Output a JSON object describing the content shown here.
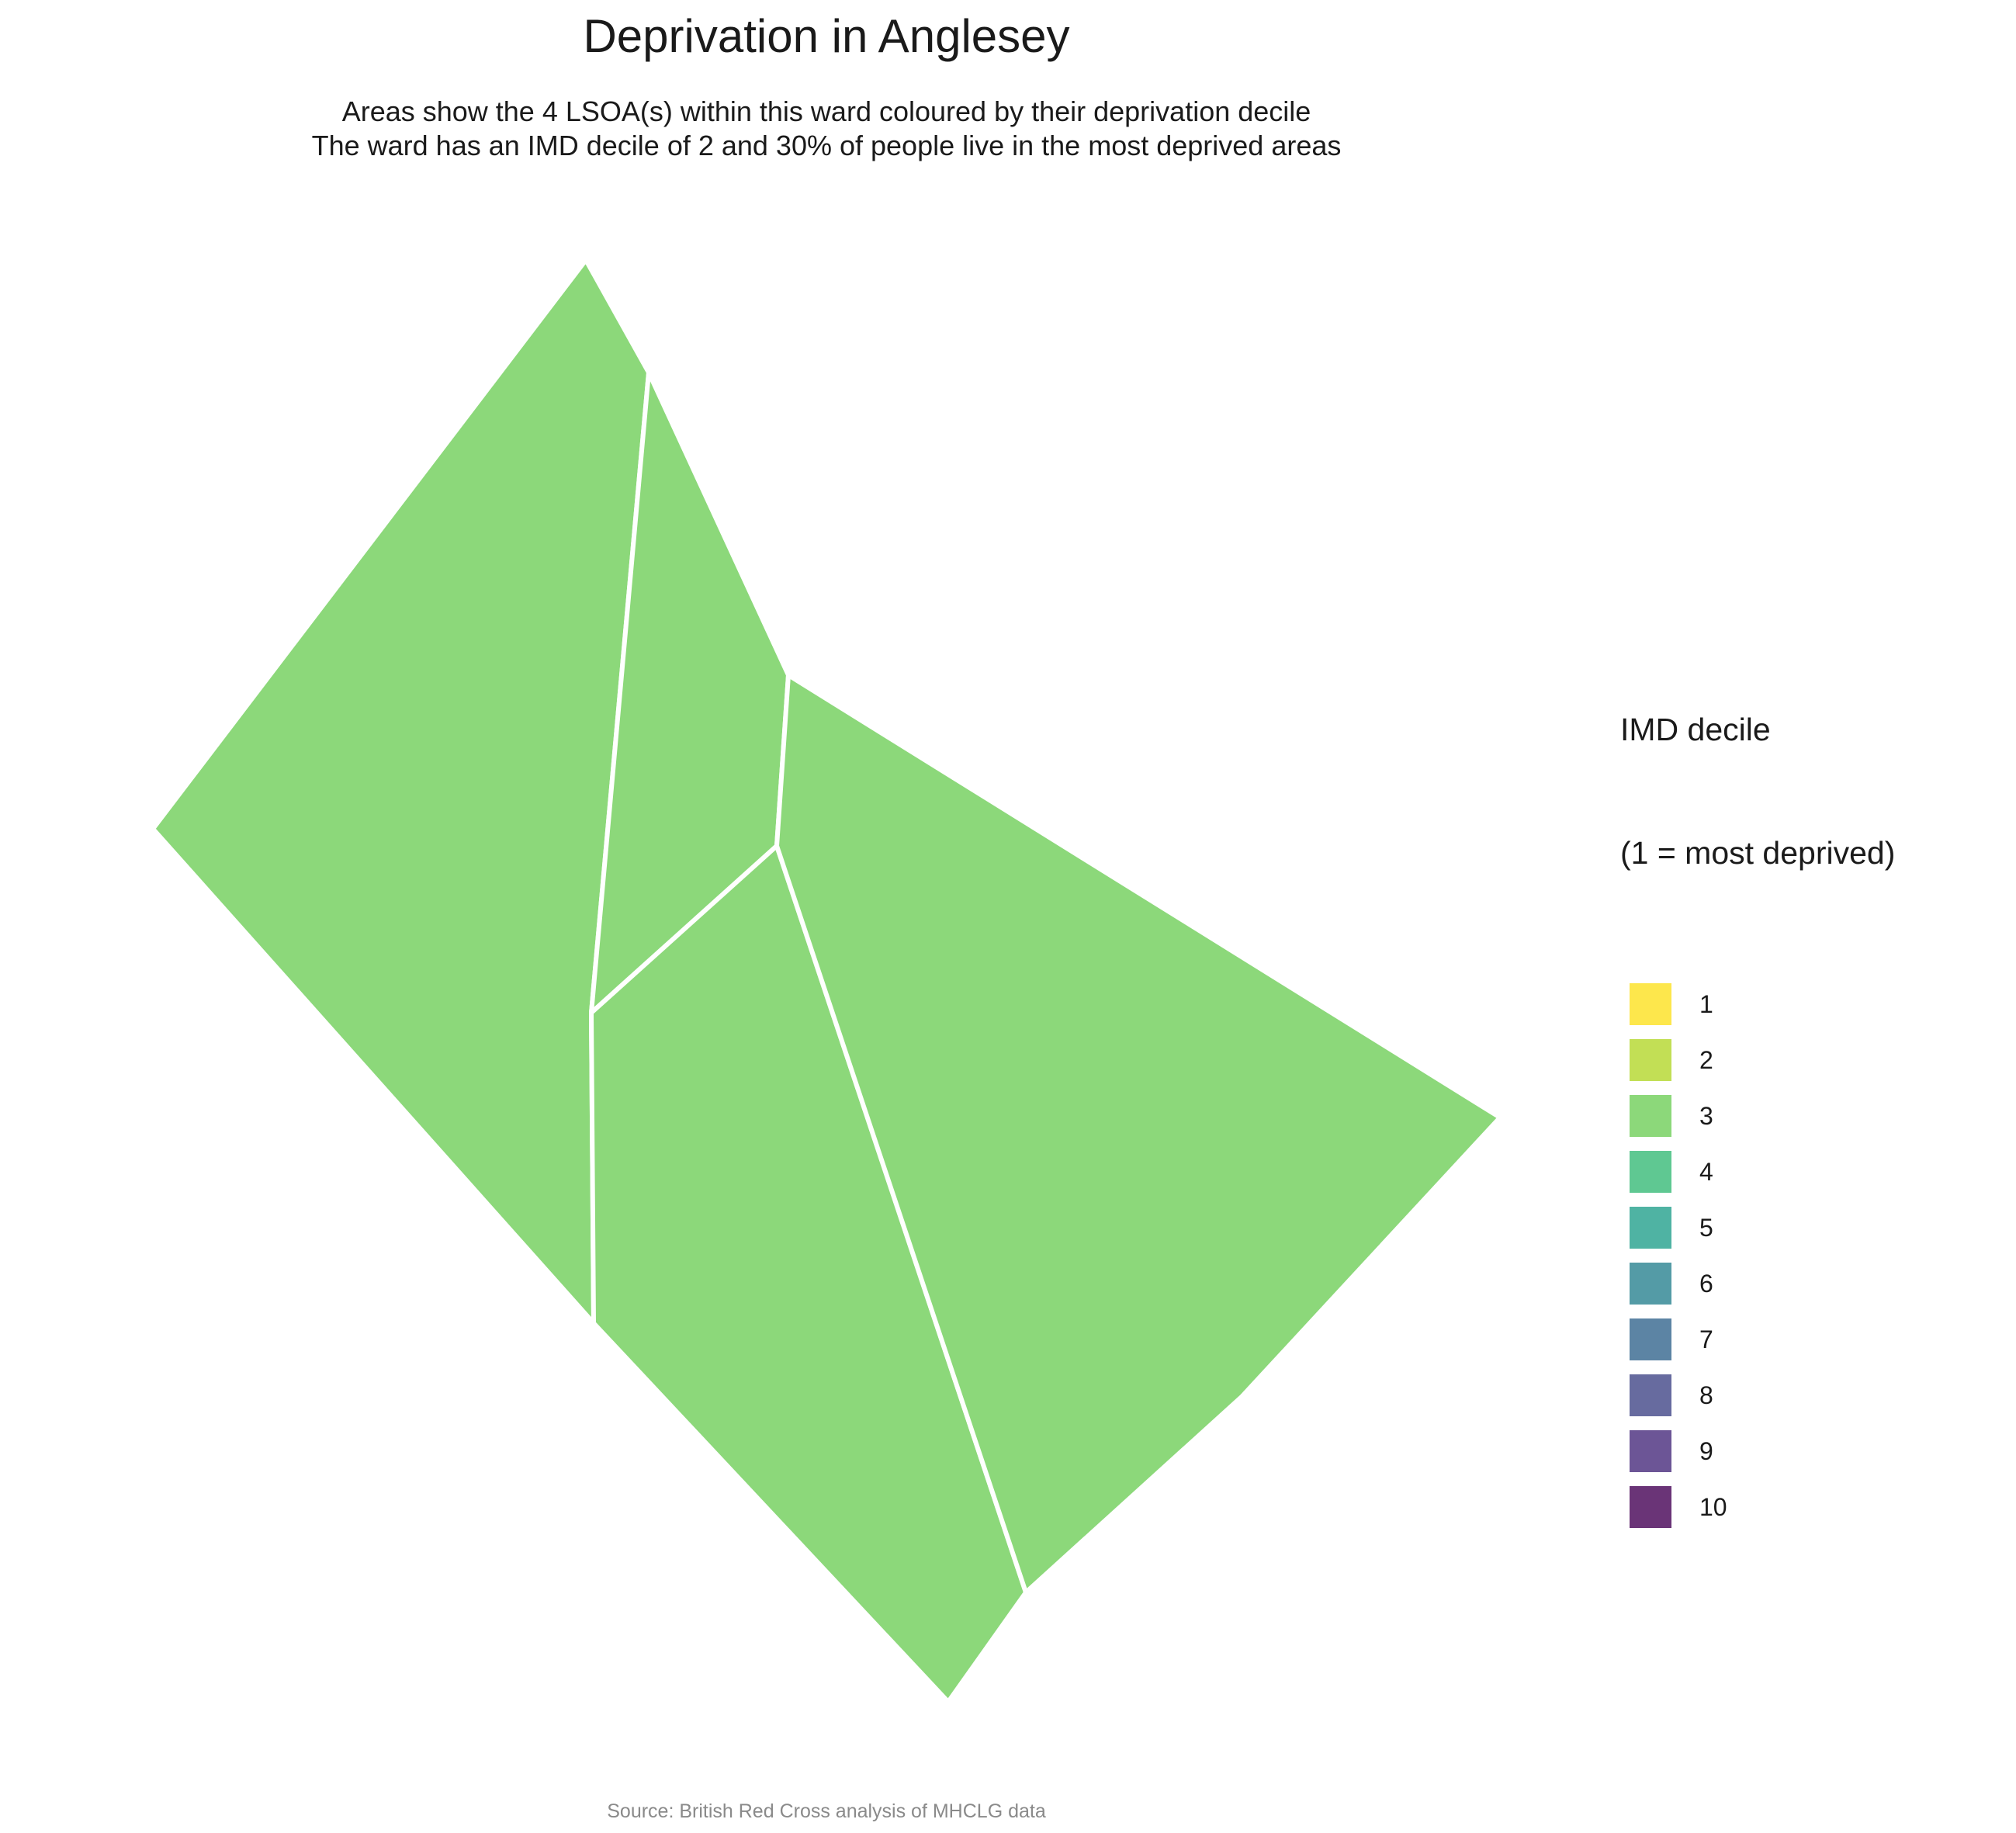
{
  "title": "Deprivation in Anglesey",
  "subtitle_line1": "Areas show the 4 LSOA(s) within this ward coloured by their deprivation decile",
  "subtitle_line2": "The ward has an IMD decile of 2 and 30% of people live in the most deprived areas",
  "legend": {
    "title_line1": "IMD decile",
    "title_line2": "(1 = most deprived)",
    "items": [
      {
        "label": "1",
        "color": "#FDE74C"
      },
      {
        "label": "2",
        "color": "#C2DF55"
      },
      {
        "label": "3",
        "color": "#8CD87A"
      },
      {
        "label": "4",
        "color": "#5FC892"
      },
      {
        "label": "5",
        "color": "#4FB3A3"
      },
      {
        "label": "6",
        "color": "#549BA6"
      },
      {
        "label": "7",
        "color": "#5C84A4"
      },
      {
        "label": "8",
        "color": "#676B9F"
      },
      {
        "label": "9",
        "color": "#6C5596"
      },
      {
        "label": "10",
        "color": "#6A3477"
      }
    ]
  },
  "areas": [
    {
      "decile": 3,
      "color": "#8CD87A"
    },
    {
      "decile": 3,
      "color": "#8CD87A"
    },
    {
      "decile": 3,
      "color": "#8CD87A"
    },
    {
      "decile": 3,
      "color": "#8CD87A"
    }
  ],
  "caption": "Source: British Red Cross analysis of MHCLG data"
}
